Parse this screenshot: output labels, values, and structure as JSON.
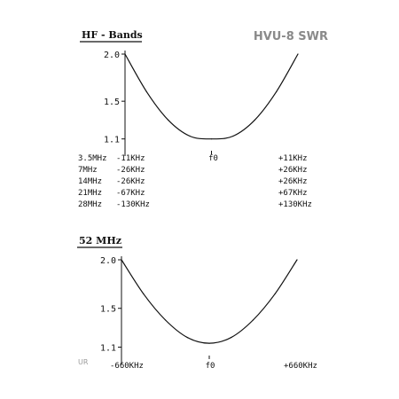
{
  "title": "HVU-8 SWR",
  "footer_mark": "UR",
  "chart_data": [
    {
      "type": "line",
      "title": "HF - Bands",
      "xlabel": "",
      "ylabel": "",
      "x": [
        -1.0,
        -0.75,
        -0.5,
        -0.25,
        0.0,
        0.25,
        0.5,
        0.75,
        1.0
      ],
      "series": [
        {
          "values": [
            2.0,
            1.6,
            1.3,
            1.13,
            1.1,
            1.13,
            1.3,
            1.6,
            2.0
          ]
        }
      ],
      "ylim": [
        1.0,
        2.0
      ],
      "y_ticks": [
        {
          "value": 2.0,
          "label": "2.0"
        },
        {
          "value": 1.5,
          "label": "1.5"
        },
        {
          "value": 1.1,
          "label": "1.1"
        }
      ],
      "x_center_label": "f0",
      "grid": false,
      "band_rows": [
        {
          "band": "3.5MHz",
          "minus": "-11KHz",
          "plus": "+11KHz"
        },
        {
          "band": "7MHz",
          "minus": "-26KHz",
          "plus": "+26KHz"
        },
        {
          "band": "14MHz",
          "minus": "-26KHz",
          "plus": "+26KHz"
        },
        {
          "band": "21MHz",
          "minus": "-67KHz",
          "plus": "+67KHz"
        },
        {
          "band": "28MHz",
          "minus": "-130KHz",
          "plus": "+130KHz"
        }
      ]
    },
    {
      "type": "line",
      "title": "52 MHz",
      "xlabel": "",
      "ylabel": "",
      "x": [
        -1.0,
        -0.75,
        -0.5,
        -0.25,
        0.0,
        0.25,
        0.5,
        0.75,
        1.0
      ],
      "series": [
        {
          "values": [
            2.0,
            1.65,
            1.38,
            1.2,
            1.14,
            1.2,
            1.38,
            1.65,
            2.0
          ]
        }
      ],
      "ylim": [
        1.0,
        2.0
      ],
      "y_ticks": [
        {
          "value": 2.0,
          "label": "2.0"
        },
        {
          "value": 1.5,
          "label": "1.5"
        },
        {
          "value": 1.1,
          "label": "1.1"
        }
      ],
      "x_center_label": "f0",
      "grid": false,
      "x_tick_labels": {
        "left": "-660KHz",
        "center": "f0",
        "right": "+660KHz"
      }
    }
  ]
}
